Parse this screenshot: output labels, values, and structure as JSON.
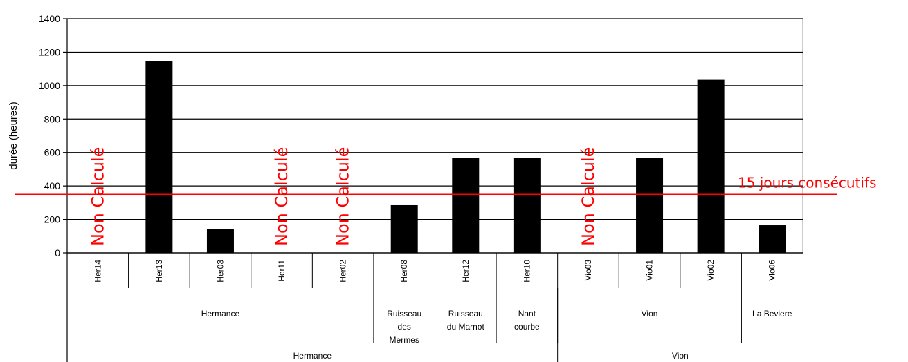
{
  "chart_data": {
    "type": "bar",
    "ylabel": "durée (heures)",
    "ylim": [
      0,
      1400
    ],
    "yticks": [
      0,
      200,
      400,
      600,
      800,
      1000,
      1200,
      1400
    ],
    "grid": true,
    "categories": [
      "Her14",
      "Her13",
      "Her03",
      "Her11",
      "Her02",
      "Her08",
      "Her12",
      "Her10",
      "Vio03",
      "Vio01",
      "Vio02",
      "Vio06"
    ],
    "values": [
      null,
      1143,
      140,
      null,
      null,
      283,
      567,
      567,
      null,
      567,
      1032,
      163
    ],
    "not_computed_label": "Non Calculé",
    "reference_line": {
      "value": 350,
      "label": "15 jours consécutifs",
      "color": "#ff0000"
    },
    "subgroups": [
      {
        "label": "Hermance",
        "start": 0,
        "end": 4
      },
      {
        "label": "Ruisseau des Mermes",
        "lines": [
          "Ruisseau",
          "des",
          "Mermes"
        ],
        "start": 5,
        "end": 5
      },
      {
        "label": "Ruisseau du Marnot",
        "lines": [
          "Ruisseau",
          "du Marnot"
        ],
        "start": 6,
        "end": 6
      },
      {
        "label": "Nant courbe",
        "lines": [
          "Nant",
          "courbe"
        ],
        "start": 7,
        "end": 7
      },
      {
        "label": "Vion",
        "start": 8,
        "end": 10
      },
      {
        "label": "La Beviere",
        "start": 11,
        "end": 11
      }
    ],
    "groups": [
      {
        "label": "Hermance",
        "start": 0,
        "end": 7
      },
      {
        "label": "Vion",
        "start": 8,
        "end": 11
      }
    ],
    "colors": {
      "bar": "#000000",
      "grid": "#000000",
      "reference": "#ff0000",
      "not_computed": "#ff0000"
    }
  }
}
